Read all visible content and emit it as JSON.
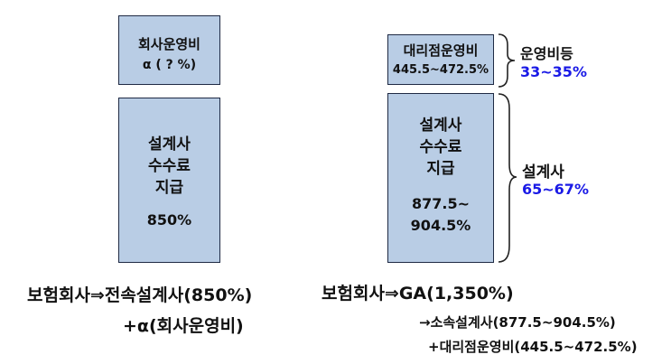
{
  "left": {
    "top_box": {
      "line1": "회사운영비",
      "line2": "α ( ? %)"
    },
    "main_box": {
      "line1": "설계사",
      "line2": "수수료",
      "line3": "지급",
      "line4": "850%"
    },
    "caption_line1": "보험회사⇒전속설계사(850%)",
    "caption_line2": "+α(회사운영비)"
  },
  "right": {
    "top_box": {
      "line1": "대리점운영비",
      "line2": "445.5~472.5%"
    },
    "main_box": {
      "line1": "설계사",
      "line2": "수수료",
      "line3": "지급",
      "line4": "877.5~",
      "line5": "904.5%"
    },
    "brace_top": {
      "label": "운영비등",
      "value": "33~35%"
    },
    "brace_bottom": {
      "label": "설계사",
      "value": "65~67%"
    },
    "caption_line1": "보험회사⇒GA(1,350%)",
    "caption_line2": "→소속설계사(877.5~904.5%)",
    "caption_line3": "+대리점운영비(445.5~472.5%)"
  },
  "colors": {
    "box_fill": "#b9cde5",
    "box_border": "#1f2a44",
    "highlight": "#1a1ae6"
  }
}
